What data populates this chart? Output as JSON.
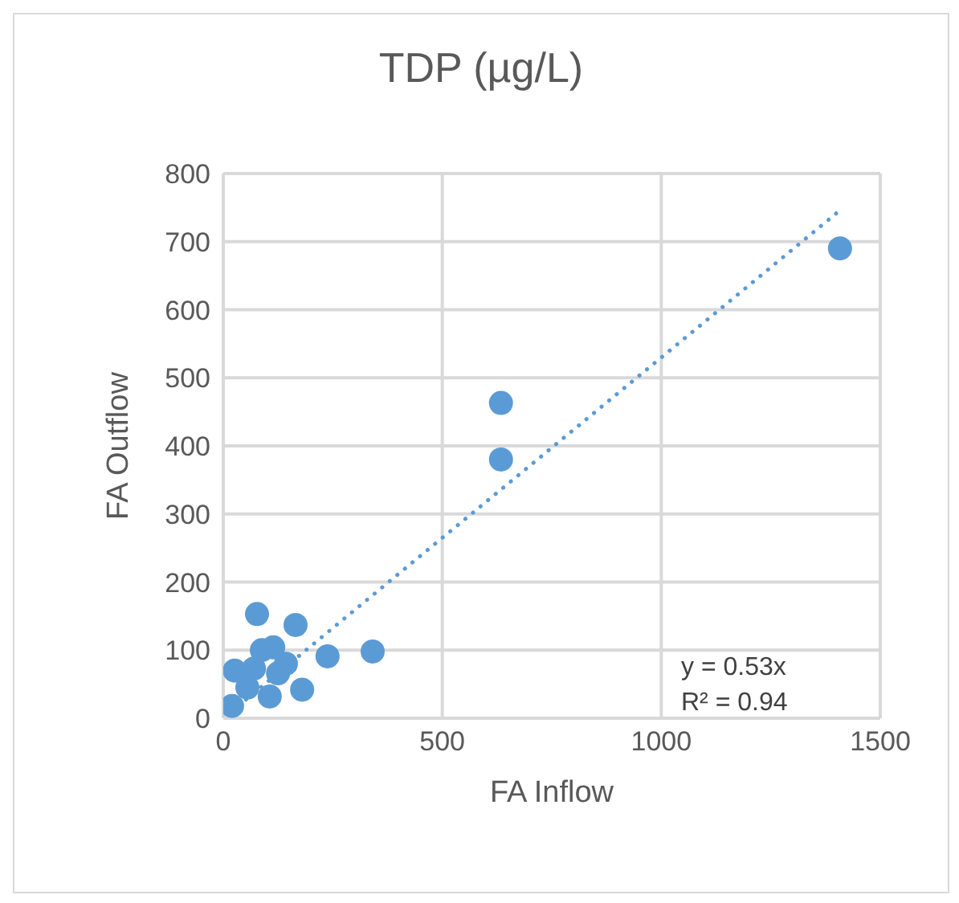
{
  "chart_data": {
    "type": "scatter",
    "title": "TDP (µg/L)",
    "xlabel": "FA Inflow",
    "ylabel": "FA Outflow",
    "xlim": [
      0,
      1500
    ],
    "xticks": [
      0,
      500,
      1000,
      1500
    ],
    "ylim": [
      0,
      800
    ],
    "yticks": [
      0,
      100,
      200,
      300,
      400,
      500,
      600,
      700,
      800
    ],
    "grid": true,
    "legend": false,
    "annotations": [
      "y = 0.53x",
      "R² = 0.94"
    ],
    "series": [
      {
        "color": "#5b9bd5",
        "marker": "circle",
        "x": [
          26,
          77,
          165,
          114,
          88,
          238,
          341,
          180,
          106,
          70,
          143,
          125,
          20,
          55,
          634,
          634,
          1408
        ],
        "values": [
          70,
          153,
          137,
          104,
          100,
          91,
          98,
          42,
          32,
          73,
          80,
          66,
          18,
          45,
          463,
          380,
          690
        ]
      },
      {
        "type": "line",
        "color": "#5b9bd5",
        "marker": "none",
        "line_style": "dotted",
        "x": [
          0,
          1410
        ],
        "values": [
          0,
          747
        ]
      }
    ]
  }
}
